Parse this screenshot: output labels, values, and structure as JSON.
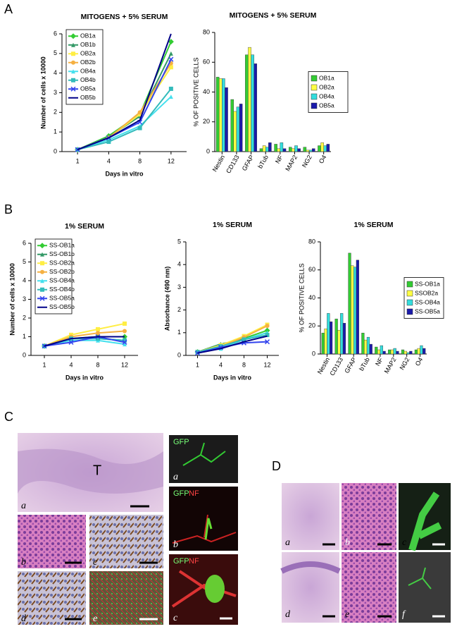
{
  "chart_data": [
    {
      "type": "line",
      "panel": "A",
      "title": "MITOGENS + 5% SERUM",
      "y_label": "Number of cells x 10000",
      "x_label": "Days in vitro",
      "categories": [
        "1",
        "4",
        "8",
        "12"
      ],
      "ylim": [
        0,
        6
      ],
      "yticks": [
        0,
        1,
        2,
        3,
        4,
        5,
        6
      ],
      "legend": "upper left",
      "series": [
        {
          "name": "OB1a",
          "color": "#33cc33",
          "values": [
            0.1,
            0.8,
            1.9,
            5.6
          ]
        },
        {
          "name": "OB1b",
          "color": "#339966",
          "values": [
            0.1,
            0.75,
            1.8,
            5.0
          ]
        },
        {
          "name": "OB2a",
          "color": "#ffee44",
          "values": [
            0.1,
            0.7,
            1.9,
            4.3
          ]
        },
        {
          "name": "OB2b",
          "color": "#f5b041",
          "values": [
            0.1,
            0.7,
            2.0,
            4.5
          ]
        },
        {
          "name": "OB4a",
          "color": "#44e0ee",
          "values": [
            0.1,
            0.6,
            1.3,
            2.8
          ]
        },
        {
          "name": "OB4b",
          "color": "#33bbbb",
          "values": [
            0.1,
            0.5,
            1.2,
            3.2
          ]
        },
        {
          "name": "OB5a",
          "color": "#3344ee",
          "values": [
            0.1,
            0.7,
            1.5,
            4.7
          ]
        },
        {
          "name": "OB5b",
          "color": "#000088",
          "values": [
            0.1,
            0.7,
            1.6,
            6.0
          ]
        }
      ]
    },
    {
      "type": "bar",
      "title": "MITOGENS + 5% SERUM",
      "y_label": "% OF POSITIVE CELLS",
      "categories": [
        "Nestin",
        "CD133",
        "GFAP",
        "bTub",
        "NF",
        "MAP2",
        "NG2",
        "O4"
      ],
      "ylim": [
        0,
        80
      ],
      "yticks": [
        0,
        20,
        40,
        60,
        80
      ],
      "legend": "center right",
      "series": [
        {
          "name": "OB1a",
          "color": "#33cc33",
          "values": [
            50,
            35,
            65,
            2,
            5,
            3,
            3,
            4
          ]
        },
        {
          "name": "OB2a",
          "color": "#ffff44",
          "values": [
            49,
            27,
            70,
            4,
            2,
            2,
            1,
            6
          ]
        },
        {
          "name": "OB4a",
          "color": "#33dddd",
          "values": [
            49,
            30,
            65,
            3,
            6,
            4,
            1,
            4
          ]
        },
        {
          "name": "OB5a",
          "color": "#1a1aaa",
          "values": [
            43,
            32,
            59,
            6,
            2,
            2,
            2,
            5
          ]
        }
      ]
    },
    {
      "type": "line",
      "panel": "B",
      "title": "1% SERUM",
      "y_label": "Number of cells x 10000",
      "x_label": "Days in vitro",
      "categories": [
        "1",
        "4",
        "8",
        "12"
      ],
      "ylim": [
        0,
        6
      ],
      "yticks": [
        0,
        1,
        2,
        3,
        4,
        5,
        6
      ],
      "legend": "upper left",
      "series": [
        {
          "name": "SS-OB1a",
          "color": "#33cc33",
          "values": [
            0.5,
            0.9,
            1.0,
            1.0
          ]
        },
        {
          "name": "SS-OB1b",
          "color": "#339966",
          "values": [
            0.5,
            0.9,
            0.9,
            0.8
          ]
        },
        {
          "name": "SS-OB2a",
          "color": "#ffee44",
          "values": [
            0.5,
            1.1,
            1.4,
            1.7
          ]
        },
        {
          "name": "SS-OB2b",
          "color": "#f5b041",
          "values": [
            0.5,
            1.0,
            1.2,
            1.3
          ]
        },
        {
          "name": "SS-OB4a",
          "color": "#44e0ee",
          "values": [
            0.5,
            0.8,
            0.8,
            0.6
          ]
        },
        {
          "name": "SS-OB4b",
          "color": "#33bbbb",
          "values": [
            0.5,
            0.9,
            0.9,
            0.8
          ]
        },
        {
          "name": "SS-OB5a",
          "color": "#3344ee",
          "values": [
            0.5,
            0.7,
            1.0,
            0.7
          ]
        },
        {
          "name": "SS-OB5b",
          "color": "#000088",
          "values": [
            0.5,
            0.9,
            1.0,
            1.0
          ]
        }
      ]
    },
    {
      "type": "line",
      "title": "1% SERUM",
      "y_label": "Absorbance (490 nm)",
      "x_label": "Days in vitro",
      "categories": [
        "1",
        "4",
        "8",
        "12"
      ],
      "ylim": [
        0,
        5
      ],
      "yticks": [
        0,
        1,
        2,
        3,
        4,
        5
      ],
      "series": [
        {
          "color": "#33cc33",
          "values": [
            0.15,
            0.45,
            0.75,
            1.1
          ]
        },
        {
          "color": "#339966",
          "values": [
            0.15,
            0.5,
            0.7,
            1.0
          ]
        },
        {
          "color": "#ffee44",
          "values": [
            0.15,
            0.45,
            0.85,
            1.35
          ]
        },
        {
          "color": "#f5b041",
          "values": [
            0.15,
            0.4,
            0.8,
            1.3
          ]
        },
        {
          "color": "#44e0ee",
          "values": [
            0.15,
            0.3,
            0.7,
            1.0
          ]
        },
        {
          "color": "#33bbbb",
          "values": [
            0.15,
            0.4,
            0.7,
            0.9
          ]
        },
        {
          "color": "#3344ee",
          "values": [
            0.1,
            0.35,
            0.55,
            0.6
          ]
        },
        {
          "color": "#000088",
          "values": [
            0.1,
            0.3,
            0.6,
            0.85
          ]
        }
      ]
    },
    {
      "type": "bar",
      "title": "1% SERUM",
      "y_label": "% OF POSITIVE CELLS",
      "categories": [
        "Nestin",
        "CD133",
        "GFAP",
        "bTub",
        "NF",
        "MAP2",
        "NG2",
        "O4"
      ],
      "ylim": [
        0,
        80
      ],
      "yticks": [
        0,
        20,
        40,
        60,
        80
      ],
      "legend": "center right",
      "series": [
        {
          "name": "SS-OB1a",
          "color": "#33cc33",
          "values": [
            15,
            25,
            72,
            15,
            5,
            3,
            3,
            3
          ]
        },
        {
          "name": "SSOB2a",
          "color": "#ffff44",
          "values": [
            18,
            17,
            63,
            10,
            3,
            3,
            2,
            4
          ]
        },
        {
          "name": "SS-OB4a",
          "color": "#33dddd",
          "values": [
            29,
            29,
            62,
            12,
            6,
            4,
            1,
            6
          ]
        },
        {
          "name": "SS-OB5a",
          "color": "#1a1aaa",
          "values": [
            23,
            22,
            67,
            7,
            2,
            2,
            2,
            4
          ]
        }
      ]
    }
  ],
  "figure": {
    "panel_c": {
      "label": "C",
      "tumor_label": "T",
      "histology": [
        "a",
        "b",
        "c",
        "d",
        "e"
      ],
      "fluorescence": [
        {
          "label": "a",
          "stains": [
            "GFP"
          ]
        },
        {
          "label": "b",
          "stains": [
            "GFP",
            "NF"
          ]
        },
        {
          "label": "c",
          "stains": [
            "GFP",
            "NF"
          ]
        }
      ]
    },
    "panel_d": {
      "label": "D",
      "images": [
        "a",
        "b",
        "c",
        "d",
        "e",
        "f"
      ]
    }
  }
}
